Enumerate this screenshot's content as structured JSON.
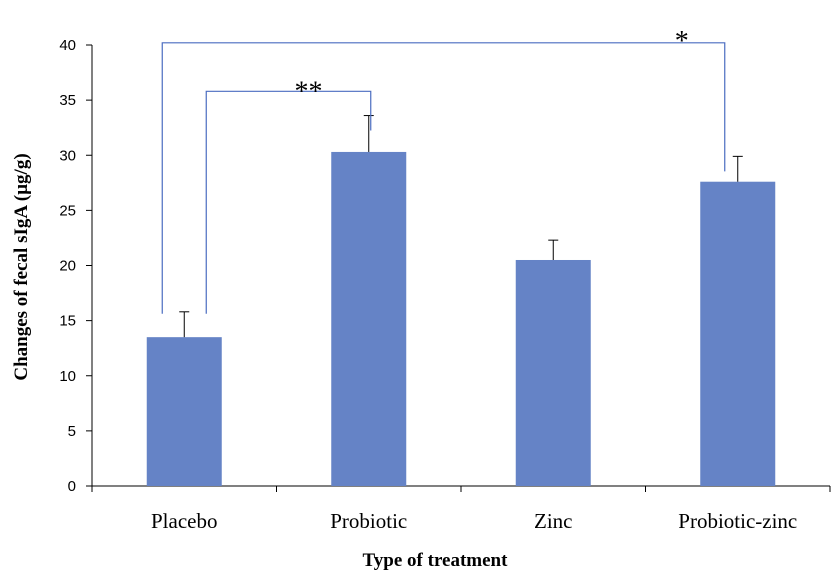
{
  "chart_data": {
    "type": "bar",
    "title": "",
    "xlabel": "Type of  treatment",
    "ylabel": "Changes  of fecal  sIgA (µg/g)",
    "categories": [
      "Placebo",
      "Probiotic",
      "Zinc",
      "Probiotic-zinc"
    ],
    "values": [
      13.5,
      30.3,
      20.5,
      27.6
    ],
    "error_upper": [
      2.3,
      3.3,
      1.8,
      2.3
    ],
    "ylim": [
      0,
      40
    ],
    "yticks": [
      "0",
      "5",
      "10",
      "15",
      "20",
      "25",
      "30",
      "35",
      "40"
    ],
    "bar_color": "#6583c6",
    "bracket_color": "#4a6cc0",
    "grid": false,
    "legend": "none",
    "significance": [
      {
        "from": "Placebo",
        "to": "Probiotic",
        "label": "**",
        "y": 35.8
      },
      {
        "from": "Placebo",
        "to": "Probiotic-zinc",
        "label": "*",
        "y": 40.2
      }
    ]
  }
}
